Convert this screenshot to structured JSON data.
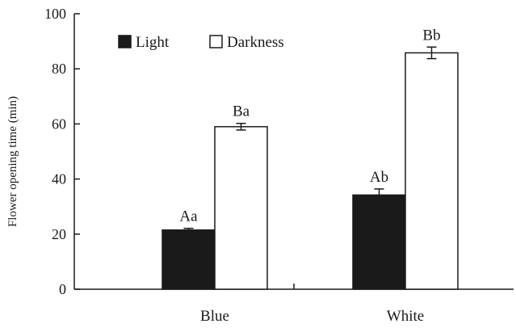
{
  "chart_data": {
    "type": "bar",
    "title": "",
    "xlabel": "",
    "ylabel": "Flower opening time (min)",
    "ylim": [
      0,
      100
    ],
    "yticks": [
      0,
      20,
      40,
      60,
      80,
      100
    ],
    "grid": false,
    "legend_position": "top-left",
    "categories": [
      "Blue",
      "White"
    ],
    "series": [
      {
        "name": "Light",
        "color": "#1a1a1a",
        "values": [
          21.5,
          34.2
        ],
        "errors": [
          0.6,
          2.2
        ],
        "labels": [
          "Aa",
          "Ab"
        ]
      },
      {
        "name": "Darkness",
        "color": "#ffffff",
        "values": [
          59.0,
          85.8
        ],
        "errors": [
          1.2,
          2.1
        ],
        "labels": [
          "Ba",
          "Bb"
        ]
      }
    ]
  }
}
